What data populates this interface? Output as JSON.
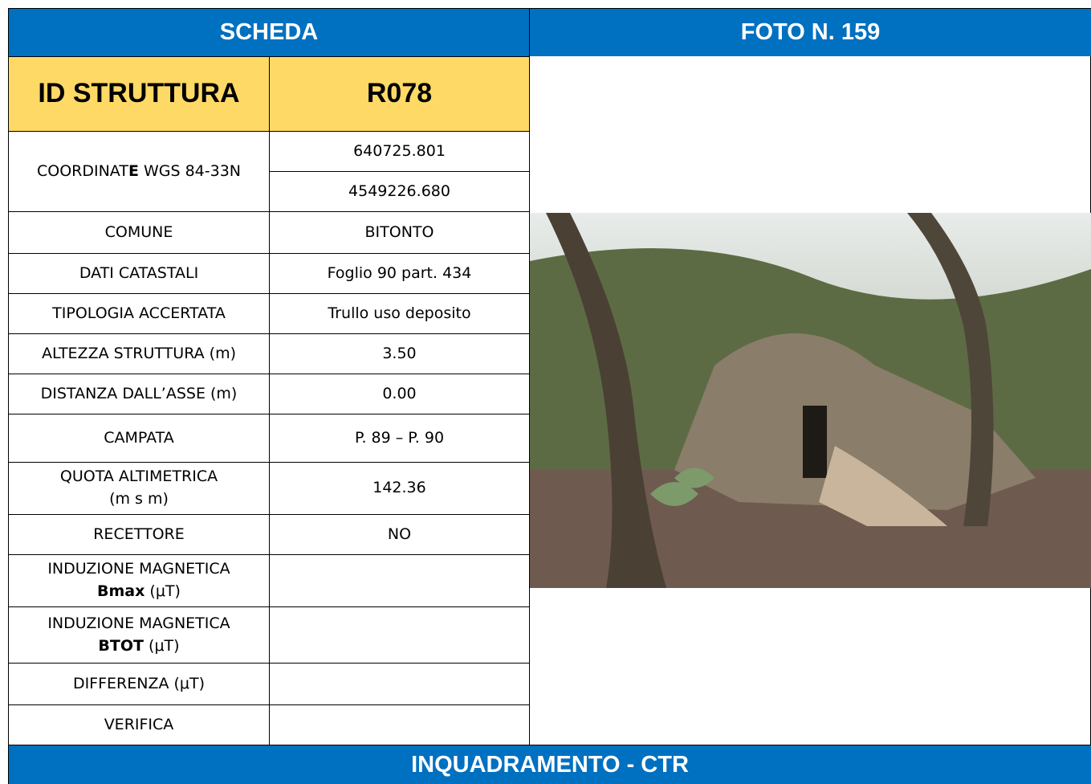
{
  "header": {
    "left": "SCHEDA",
    "right": "FOTO N. 159"
  },
  "id_row": {
    "label": "ID STRUTTURA",
    "value": "R078"
  },
  "coordinates": {
    "label": [
      "COORDINAT",
      "E",
      " WGS 84-33N"
    ],
    "values": [
      "640725.801",
      "4549226.680"
    ]
  },
  "rows": [
    {
      "label": "COMUNE",
      "value": "BITONTO"
    },
    {
      "label": "DATI CATASTALI",
      "value": "Foglio 90 part. 434"
    },
    {
      "label": "TIPOLOGIA ACCERTATA",
      "value": "Trullo uso deposito"
    },
    {
      "label": "ALTEZZA STRUTTURA (m)",
      "value": "3.50"
    },
    {
      "label": "DISTANZA DALL’ASSE (m)",
      "value": "0.00"
    },
    {
      "label": "CAMPATA",
      "value": "P. 89 – P. 90"
    },
    {
      "label": [
        "QUOTA ALTIMETRICA",
        "(m s m)"
      ],
      "value": "142.36"
    },
    {
      "label": "RECETTORE",
      "value": "NO"
    },
    {
      "label": [
        "INDUZIONE MAGNETICA",
        "Bmax",
        "(μT)"
      ]
    },
    {
      "label": [
        "INDUZIONE MAGNETICA",
        "BTOT",
        "(μT)"
      ]
    },
    {
      "label": "DIFFERENZA (μT)"
    },
    {
      "label": "VERIFICA"
    }
  ],
  "footer": "INQUADRAMENTO - CTR"
}
